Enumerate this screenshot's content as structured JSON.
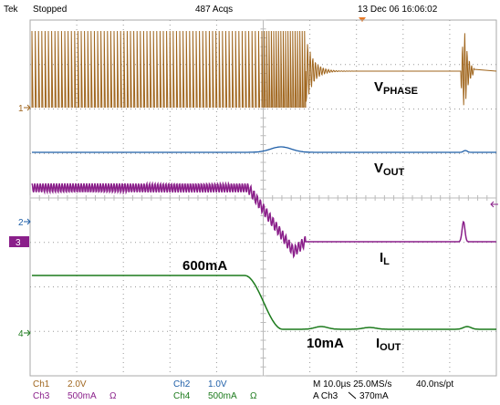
{
  "header": {
    "brand": "Tek",
    "status": "Stopped",
    "acquisitions": "487 Acqs",
    "timestamp": "13 Dec 06 16:06:02"
  },
  "channel_markers": [
    "1",
    "2",
    "3",
    "4"
  ],
  "labels": {
    "v_phase": {
      "main": "V",
      "sub": "PHASE"
    },
    "v_out": {
      "main": "V",
      "sub": "OUT"
    },
    "i_l": {
      "main": "I",
      "sub": "L"
    },
    "i_out": {
      "main": "I",
      "sub": "OUT"
    },
    "current_high": "600mA",
    "current_low": "10mA"
  },
  "footer": {
    "ch1": {
      "name": "Ch1",
      "scale": "2.0V"
    },
    "ch2": {
      "name": "Ch2",
      "scale": "1.0V"
    },
    "ch3": {
      "name": "Ch3",
      "scale": "500mA",
      "unit": "Ω"
    },
    "ch4": {
      "name": "Ch4",
      "scale": "500mA",
      "unit": "Ω"
    },
    "timebase": "M 10.0µs 25.0MS/s",
    "resolution": "40.0ns/pt",
    "trigger_source": "A Ch3",
    "trigger_level": "370mA"
  }
}
